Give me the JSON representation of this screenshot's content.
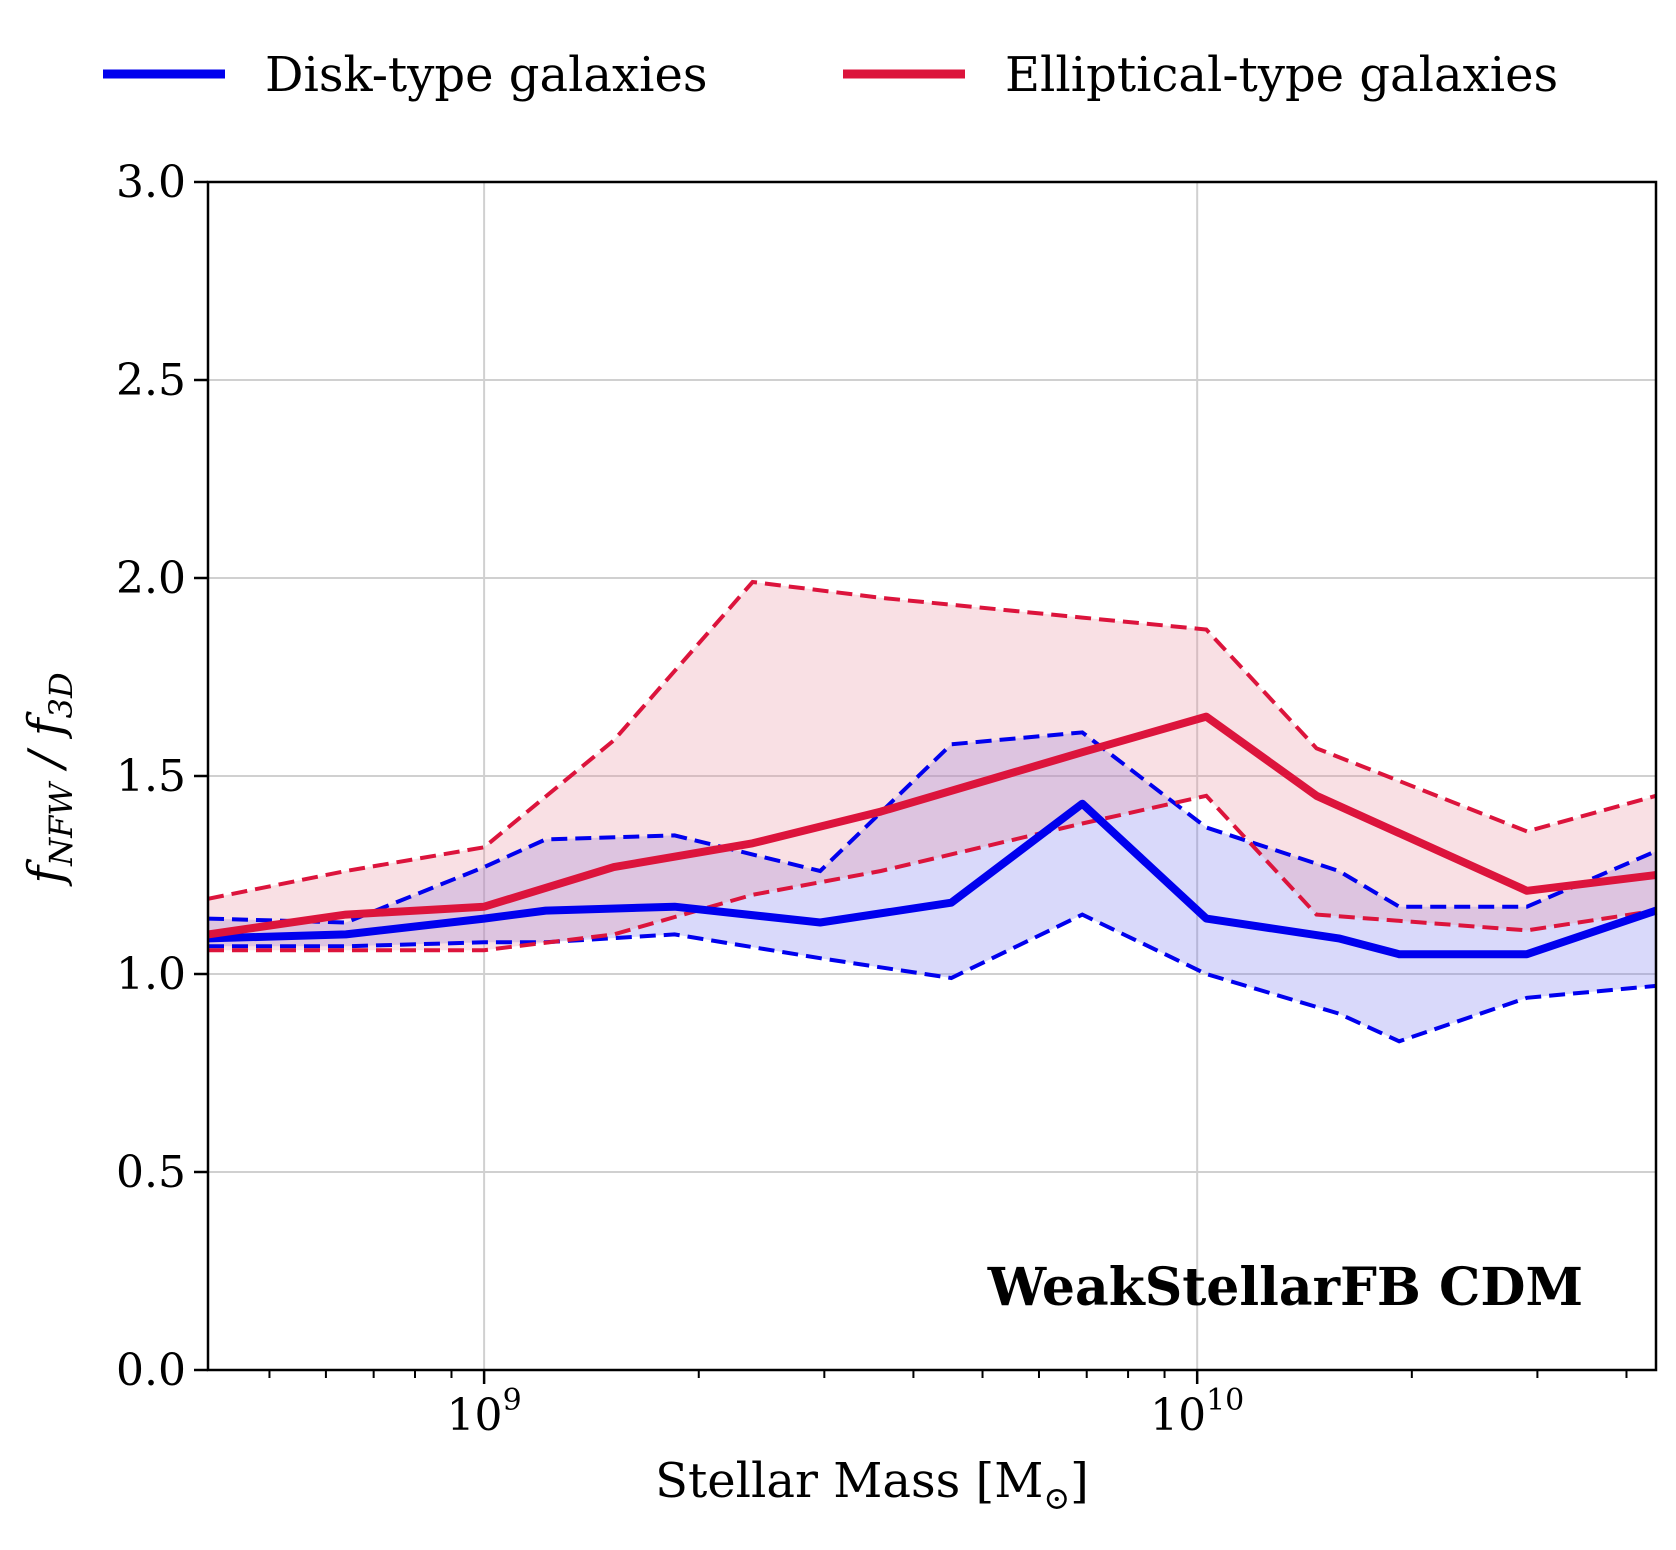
{
  "chart_data": {
    "type": "line",
    "xscale": "log",
    "xlim": [
      410000000,
      44000000000
    ],
    "ylim": [
      0.0,
      3.0
    ],
    "grid": true,
    "legend_position": "top, above plot",
    "xlabel": "Stellar Mass [M",
    "xlabel_sub": "⊙",
    "xlabel_close": "]",
    "ylabel_main": "f",
    "ylabel_sub1": "NFW",
    "ylabel_slash": " / f",
    "ylabel_sub2": "3D",
    "annotation": "WeakStellarFB CDM",
    "yticks": [
      {
        "value": 0.0,
        "label": "0.0"
      },
      {
        "value": 0.5,
        "label": "0.5"
      },
      {
        "value": 1.0,
        "label": "1.0"
      },
      {
        "value": 1.5,
        "label": "1.5"
      },
      {
        "value": 2.0,
        "label": "2.0"
      },
      {
        "value": 2.5,
        "label": "2.5"
      },
      {
        "value": 3.0,
        "label": "3.0"
      }
    ],
    "xticks_major": [
      {
        "value": 1000000000,
        "base": "10",
        "exp": "9"
      },
      {
        "value": 10000000000,
        "base": "10",
        "exp": "10"
      }
    ],
    "series": [
      {
        "name": "Disk-type galaxies",
        "color": "#0000ee",
        "fill_color": "#7777ee",
        "x": [
          410000000,
          640000000,
          1000000000,
          1220000000,
          1850000000,
          2960000000,
          4520000000,
          6900000000,
          10300000000,
          15800000000,
          19200000000,
          29000000000,
          44000000000
        ],
        "median": [
          1.09,
          1.1,
          1.14,
          1.16,
          1.17,
          1.13,
          1.18,
          1.43,
          1.14,
          1.09,
          1.05,
          1.05,
          1.16
        ],
        "upper": [
          1.14,
          1.13,
          1.27,
          1.34,
          1.35,
          1.26,
          1.58,
          1.61,
          1.37,
          1.26,
          1.17,
          1.17,
          1.31
        ],
        "lower": [
          1.07,
          1.07,
          1.08,
          1.08,
          1.1,
          1.04,
          0.99,
          1.15,
          1.0,
          0.9,
          0.83,
          0.94,
          0.97
        ]
      },
      {
        "name": "Elliptical-type galaxies",
        "color": "#dc143c",
        "fill_color": "#e8909e",
        "x": [
          410000000,
          640000000,
          1000000000,
          1520000000,
          2380000000,
          3600000000,
          6900000000,
          10300000000,
          14700000000,
          29000000000,
          44000000000
        ],
        "median": [
          1.1,
          1.15,
          1.17,
          1.27,
          1.33,
          1.41,
          1.56,
          1.65,
          1.45,
          1.21,
          1.25
        ],
        "upper": [
          1.19,
          1.26,
          1.32,
          1.59,
          1.99,
          1.95,
          1.9,
          1.87,
          1.57,
          1.36,
          1.45
        ],
        "lower": [
          1.06,
          1.06,
          1.06,
          1.1,
          1.2,
          1.26,
          1.38,
          1.45,
          1.15,
          1.11,
          1.16
        ]
      }
    ]
  }
}
